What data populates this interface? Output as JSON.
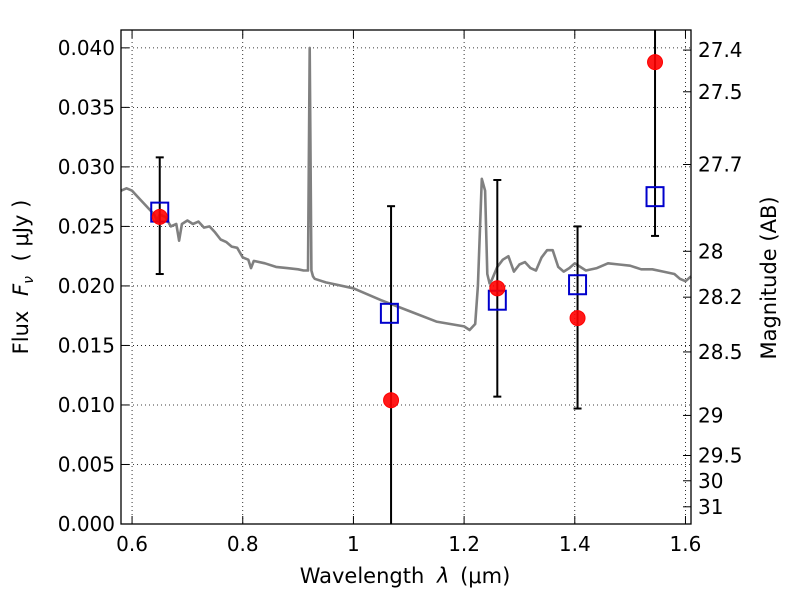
{
  "chart_data": {
    "type": "scatter",
    "xlabel": {
      "prefix": "Wavelength",
      "symbol": "λ",
      "unit": "(μm)"
    },
    "ylabel": {
      "prefix": "Flux",
      "symbol": "F",
      "subscript": "ν",
      "unit": "( μJy )"
    },
    "y2label": "Magnitude (AB)",
    "xlim": [
      0.58,
      1.61
    ],
    "ylim": [
      0.0,
      0.0415
    ],
    "x_ticks": [
      0.6,
      0.8,
      1.0,
      1.2,
      1.4,
      1.6
    ],
    "x_tick_labels": [
      "0.6",
      "0.8",
      "1",
      "1.2",
      "1.4",
      "1.6"
    ],
    "y_ticks": [
      0.0,
      0.005,
      0.01,
      0.015,
      0.02,
      0.025,
      0.03,
      0.035,
      0.04
    ],
    "y_tick_labels": [
      "0.000",
      "0.005",
      "0.010",
      "0.015",
      "0.020",
      "0.025",
      "0.030",
      "0.035",
      "0.040"
    ],
    "y2_ticks": [
      27.4,
      27.5,
      27.7,
      28,
      28.2,
      28.5,
      29,
      29.5,
      30,
      31
    ],
    "y2_tick_labels": [
      "27.4",
      "27.5",
      "27.7",
      "28",
      "28.2",
      "28.5",
      "29",
      "29.5",
      "30",
      "31"
    ],
    "grid": true,
    "colors": {
      "model": "#808080",
      "observed": "#ff0000",
      "model_bands": "#0000cc",
      "errorbars": "#000000"
    },
    "model_sed": {
      "x": [
        0.58,
        0.59,
        0.6,
        0.61,
        0.62,
        0.63,
        0.64,
        0.645,
        0.65,
        0.66,
        0.67,
        0.68,
        0.685,
        0.69,
        0.7,
        0.71,
        0.72,
        0.73,
        0.74,
        0.75,
        0.76,
        0.77,
        0.78,
        0.79,
        0.8,
        0.81,
        0.815,
        0.82,
        0.84,
        0.86,
        0.88,
        0.9,
        0.91,
        0.918,
        0.921,
        0.924,
        0.927,
        0.93,
        0.95,
        1.0,
        1.05,
        1.1,
        1.15,
        1.2,
        1.21,
        1.22,
        1.225,
        1.232,
        1.238,
        1.242,
        1.246,
        1.25,
        1.26,
        1.27,
        1.28,
        1.29,
        1.3,
        1.31,
        1.32,
        1.33,
        1.34,
        1.35,
        1.36,
        1.37,
        1.38,
        1.39,
        1.4,
        1.42,
        1.44,
        1.46,
        1.48,
        1.5,
        1.52,
        1.54,
        1.56,
        1.58,
        1.59,
        1.6,
        1.61
      ],
      "y": [
        0.028,
        0.0282,
        0.028,
        0.0275,
        0.027,
        0.0265,
        0.026,
        0.0255,
        0.026,
        0.0258,
        0.025,
        0.0252,
        0.0238,
        0.0252,
        0.0255,
        0.0252,
        0.0254,
        0.0249,
        0.025,
        0.0245,
        0.0239,
        0.0237,
        0.0233,
        0.0232,
        0.0224,
        0.0222,
        0.0215,
        0.0221,
        0.0219,
        0.0216,
        0.0215,
        0.0214,
        0.0213,
        0.0213,
        0.04,
        0.0213,
        0.0208,
        0.0206,
        0.0203,
        0.0198,
        0.0188,
        0.0179,
        0.017,
        0.0166,
        0.0163,
        0.0168,
        0.02,
        0.029,
        0.028,
        0.021,
        0.0202,
        0.0205,
        0.0216,
        0.0222,
        0.0225,
        0.0212,
        0.0218,
        0.022,
        0.0215,
        0.0213,
        0.0224,
        0.023,
        0.023,
        0.0216,
        0.0212,
        0.0215,
        0.0219,
        0.0213,
        0.0215,
        0.0219,
        0.0218,
        0.0217,
        0.0214,
        0.0214,
        0.0212,
        0.021,
        0.0206,
        0.0204,
        0.0208
      ]
    },
    "observed": [
      {
        "x": 0.65,
        "y": 0.0258,
        "yerr_low": 0.021,
        "yerr_high": 0.0308
      },
      {
        "x": 1.068,
        "y": 0.0104,
        "yerr_low": 0.0,
        "yerr_high": 0.0267
      },
      {
        "x": 1.26,
        "y": 0.0198,
        "yerr_low": 0.0107,
        "yerr_high": 0.0289
      },
      {
        "x": 1.405,
        "y": 0.0173,
        "yerr_low": 0.0097,
        "yerr_high": 0.025
      },
      {
        "x": 1.545,
        "y": 0.0388,
        "yerr_low": 0.0242,
        "yerr_high": 0.0415
      }
    ],
    "model_bands": [
      {
        "x": 0.65,
        "y": 0.0262
      },
      {
        "x": 1.065,
        "y": 0.0177
      },
      {
        "x": 1.26,
        "y": 0.0188
      },
      {
        "x": 1.405,
        "y": 0.0201
      },
      {
        "x": 1.545,
        "y": 0.0275
      }
    ]
  }
}
